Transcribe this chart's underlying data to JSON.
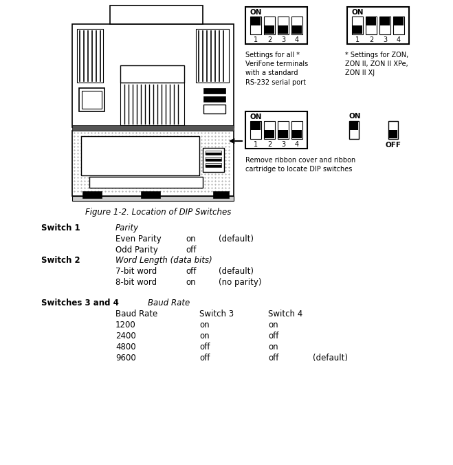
{
  "fig_width": 6.59,
  "fig_height": 6.76,
  "bg_color": "#ffffff",
  "figure_caption": "Figure 1-2. Location of DIP Switches",
  "switch1_label": "Switch 1",
  "switch1_italic": "Parity",
  "switch1_rows": [
    [
      "Even Parity",
      "on",
      "(default)"
    ],
    [
      "Odd Parity",
      "off",
      ""
    ]
  ],
  "switch2_label": "Switch 2",
  "switch2_italic": "Word Length (data bits)",
  "switch2_rows": [
    [
      "7-bit word",
      "off",
      "(default)"
    ],
    [
      "8-bit word",
      "on",
      "(no parity)"
    ]
  ],
  "switch34_label": "Switches 3 and 4",
  "switch34_italic": "Baud Rate",
  "switch34_header": [
    "Baud Rate",
    "Switch 3",
    "Switch 4"
  ],
  "switch34_rows": [
    [
      "1200",
      "on",
      "on",
      ""
    ],
    [
      "2400",
      "on",
      "off",
      ""
    ],
    [
      "4800",
      "off",
      "on",
      ""
    ],
    [
      "9600",
      "off",
      "off",
      "(default)"
    ]
  ],
  "dip1_states": [
    true,
    false,
    false,
    false
  ],
  "dip1_label": "Settings for all *\nVeriFone terminals\nwith a standard\nRS-232 serial port",
  "dip2_states": [
    false,
    true,
    true,
    true
  ],
  "dip2_label": "* Settings for ZON,\nZON II, ZON II XPe,\nZON II XJ",
  "dip3_states": [
    true,
    false,
    false,
    false
  ],
  "dip3_label": "Remove ribbon cover and ribbon\ncartridge to locate DIP switches",
  "on_state": true,
  "off_state": false
}
